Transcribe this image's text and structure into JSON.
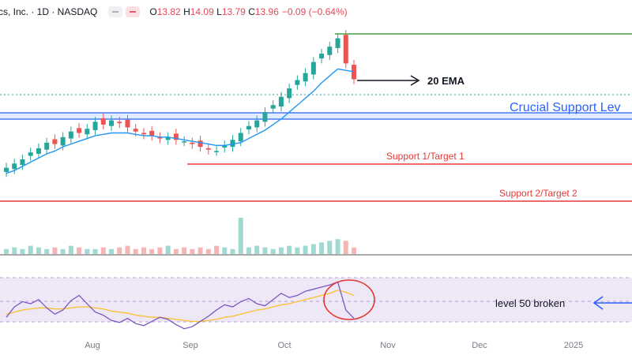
{
  "header": {
    "symbol_line": "cs, Inc. · 1D · NASDAQ",
    "open_label": "O",
    "open": "13.82",
    "high_label": "H",
    "high": "14.09",
    "low_label": "L",
    "low": "13.79",
    "close_label": "C",
    "close": "13.96",
    "change": "−0.09 (−0.64%)"
  },
  "chart_data": {
    "type": "line",
    "x_labels": [
      "Aug",
      "Sep",
      "Oct",
      "Nov",
      "Dec",
      "2025"
    ],
    "price_candles_close_trend": [
      7.6,
      7.9,
      8.2,
      8.7,
      9.0,
      9.4,
      9.3,
      9.8,
      10.2,
      10.1,
      10.4,
      10.9,
      10.7,
      11.0,
      10.8,
      10.5,
      10.2,
      10.0,
      9.9,
      9.7,
      9.8,
      9.6,
      9.5,
      9.3,
      9.1,
      8.9,
      8.8,
      9.2,
      9.6,
      10.1,
      10.6,
      11.0,
      11.6,
      12.1,
      12.7,
      13.3,
      13.9,
      14.4,
      15.2,
      15.8,
      16.3,
      16.9,
      15.1,
      13.96
    ],
    "ema20": [
      7.2,
      7.4,
      7.7,
      8.0,
      8.3,
      8.6,
      8.8,
      9.1,
      9.3,
      9.5,
      9.7,
      9.9,
      10.0,
      10.1,
      10.1,
      10.1,
      10.0,
      9.9,
      9.9,
      9.8,
      9.8,
      9.7,
      9.6,
      9.5,
      9.4,
      9.3,
      9.2,
      9.2,
      9.3,
      9.4,
      9.7,
      10.0,
      10.3,
      10.7,
      11.1,
      11.6,
      12.1,
      12.6,
      13.1,
      13.7,
      14.2,
      14.7,
      14.6,
      14.5
    ],
    "volume": [
      3,
      4,
      3,
      5,
      4,
      3,
      4,
      3,
      5,
      4,
      3,
      3,
      4,
      3,
      4,
      5,
      3,
      4,
      3,
      4,
      5,
      3,
      4,
      3,
      4,
      3,
      5,
      4,
      3,
      22,
      4,
      5,
      4,
      3,
      4,
      5,
      4,
      5,
      6,
      7,
      8,
      9,
      8,
      4
    ],
    "rsi": [
      45,
      55,
      60,
      58,
      62,
      54,
      48,
      52,
      61,
      66,
      58,
      50,
      47,
      42,
      40,
      44,
      39,
      37,
      41,
      45,
      43,
      38,
      34,
      36,
      41,
      46,
      52,
      57,
      55,
      60,
      63,
      58,
      56,
      62,
      68,
      64,
      66,
      70,
      72,
      74,
      76,
      79,
      52,
      44
    ],
    "rsi_signal": [
      48,
      50,
      52,
      53,
      54,
      54,
      53,
      53,
      54,
      55,
      55,
      54,
      53,
      51,
      50,
      49,
      47,
      46,
      45,
      45,
      44,
      43,
      42,
      41,
      41,
      42,
      43,
      45,
      46,
      48,
      50,
      52,
      53,
      55,
      57,
      58,
      60,
      62,
      64,
      66,
      68,
      71,
      69,
      66
    ],
    "levels": [
      {
        "label": "Crucial Support Lev",
        "color": "#2962ff",
        "kind": "blue-band"
      },
      {
        "label": "Support 1/Target 1",
        "color": "#e53935",
        "kind": "red-line"
      },
      {
        "label": "Support 2/Target 2",
        "color": "#e53935",
        "kind": "red-line"
      },
      {
        "label": "",
        "color": "#43a047",
        "kind": "green-line"
      }
    ],
    "annotations": {
      "ema": "20 EMA",
      "rsi": "level 50 broken"
    },
    "colors": {
      "up": "#26a69a",
      "down": "#ef5350",
      "ema": "#2196f3",
      "rsi": "#7e57c2",
      "rsi_signal": "#fbc02d",
      "rsi_band": "#ede7f6",
      "circle": "#e53935",
      "arrow": "#2962ff"
    }
  }
}
